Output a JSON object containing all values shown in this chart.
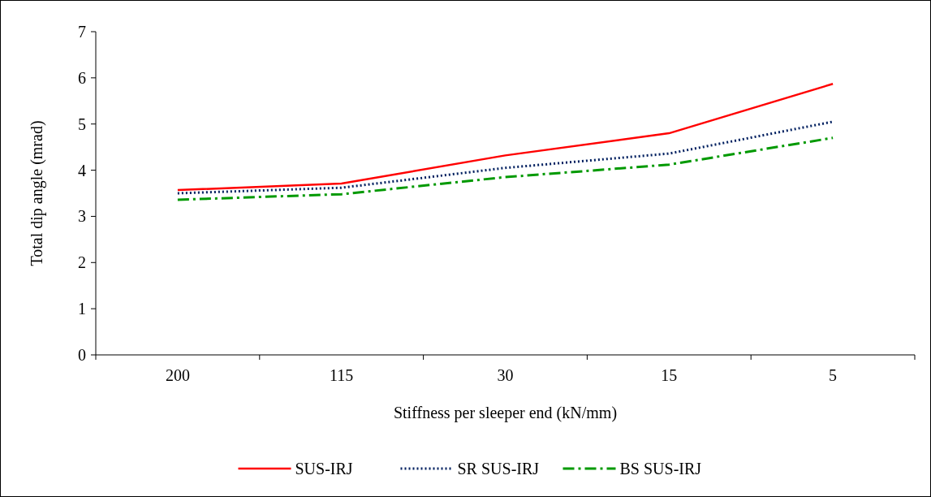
{
  "chart_data": {
    "type": "line",
    "xlabel": "Stiffness per sleeper end (kN/mm)",
    "ylabel": "Total dip angle (mrad)",
    "categories": [
      "200",
      "115",
      "30",
      "15",
      "5"
    ],
    "ylim": [
      0,
      7
    ],
    "yticks": [
      0,
      1,
      2,
      3,
      4,
      5,
      6,
      7
    ],
    "grid": false,
    "legend": "bottom",
    "marker": "none",
    "series": [
      {
        "name": "SUS-IRJ",
        "color": "#ff0000",
        "line_style": "solid",
        "values": [
          3.57,
          3.71,
          4.32,
          4.8,
          5.87
        ]
      },
      {
        "name": "SR SUS-IRJ",
        "color": "#002060",
        "line_style": "dotted",
        "values": [
          3.5,
          3.62,
          4.05,
          4.36,
          5.05
        ]
      },
      {
        "name": "BS SUS-IRJ",
        "color": "#009900",
        "line_style": "dashdot",
        "values": [
          3.36,
          3.48,
          3.85,
          4.12,
          4.7
        ]
      }
    ]
  }
}
